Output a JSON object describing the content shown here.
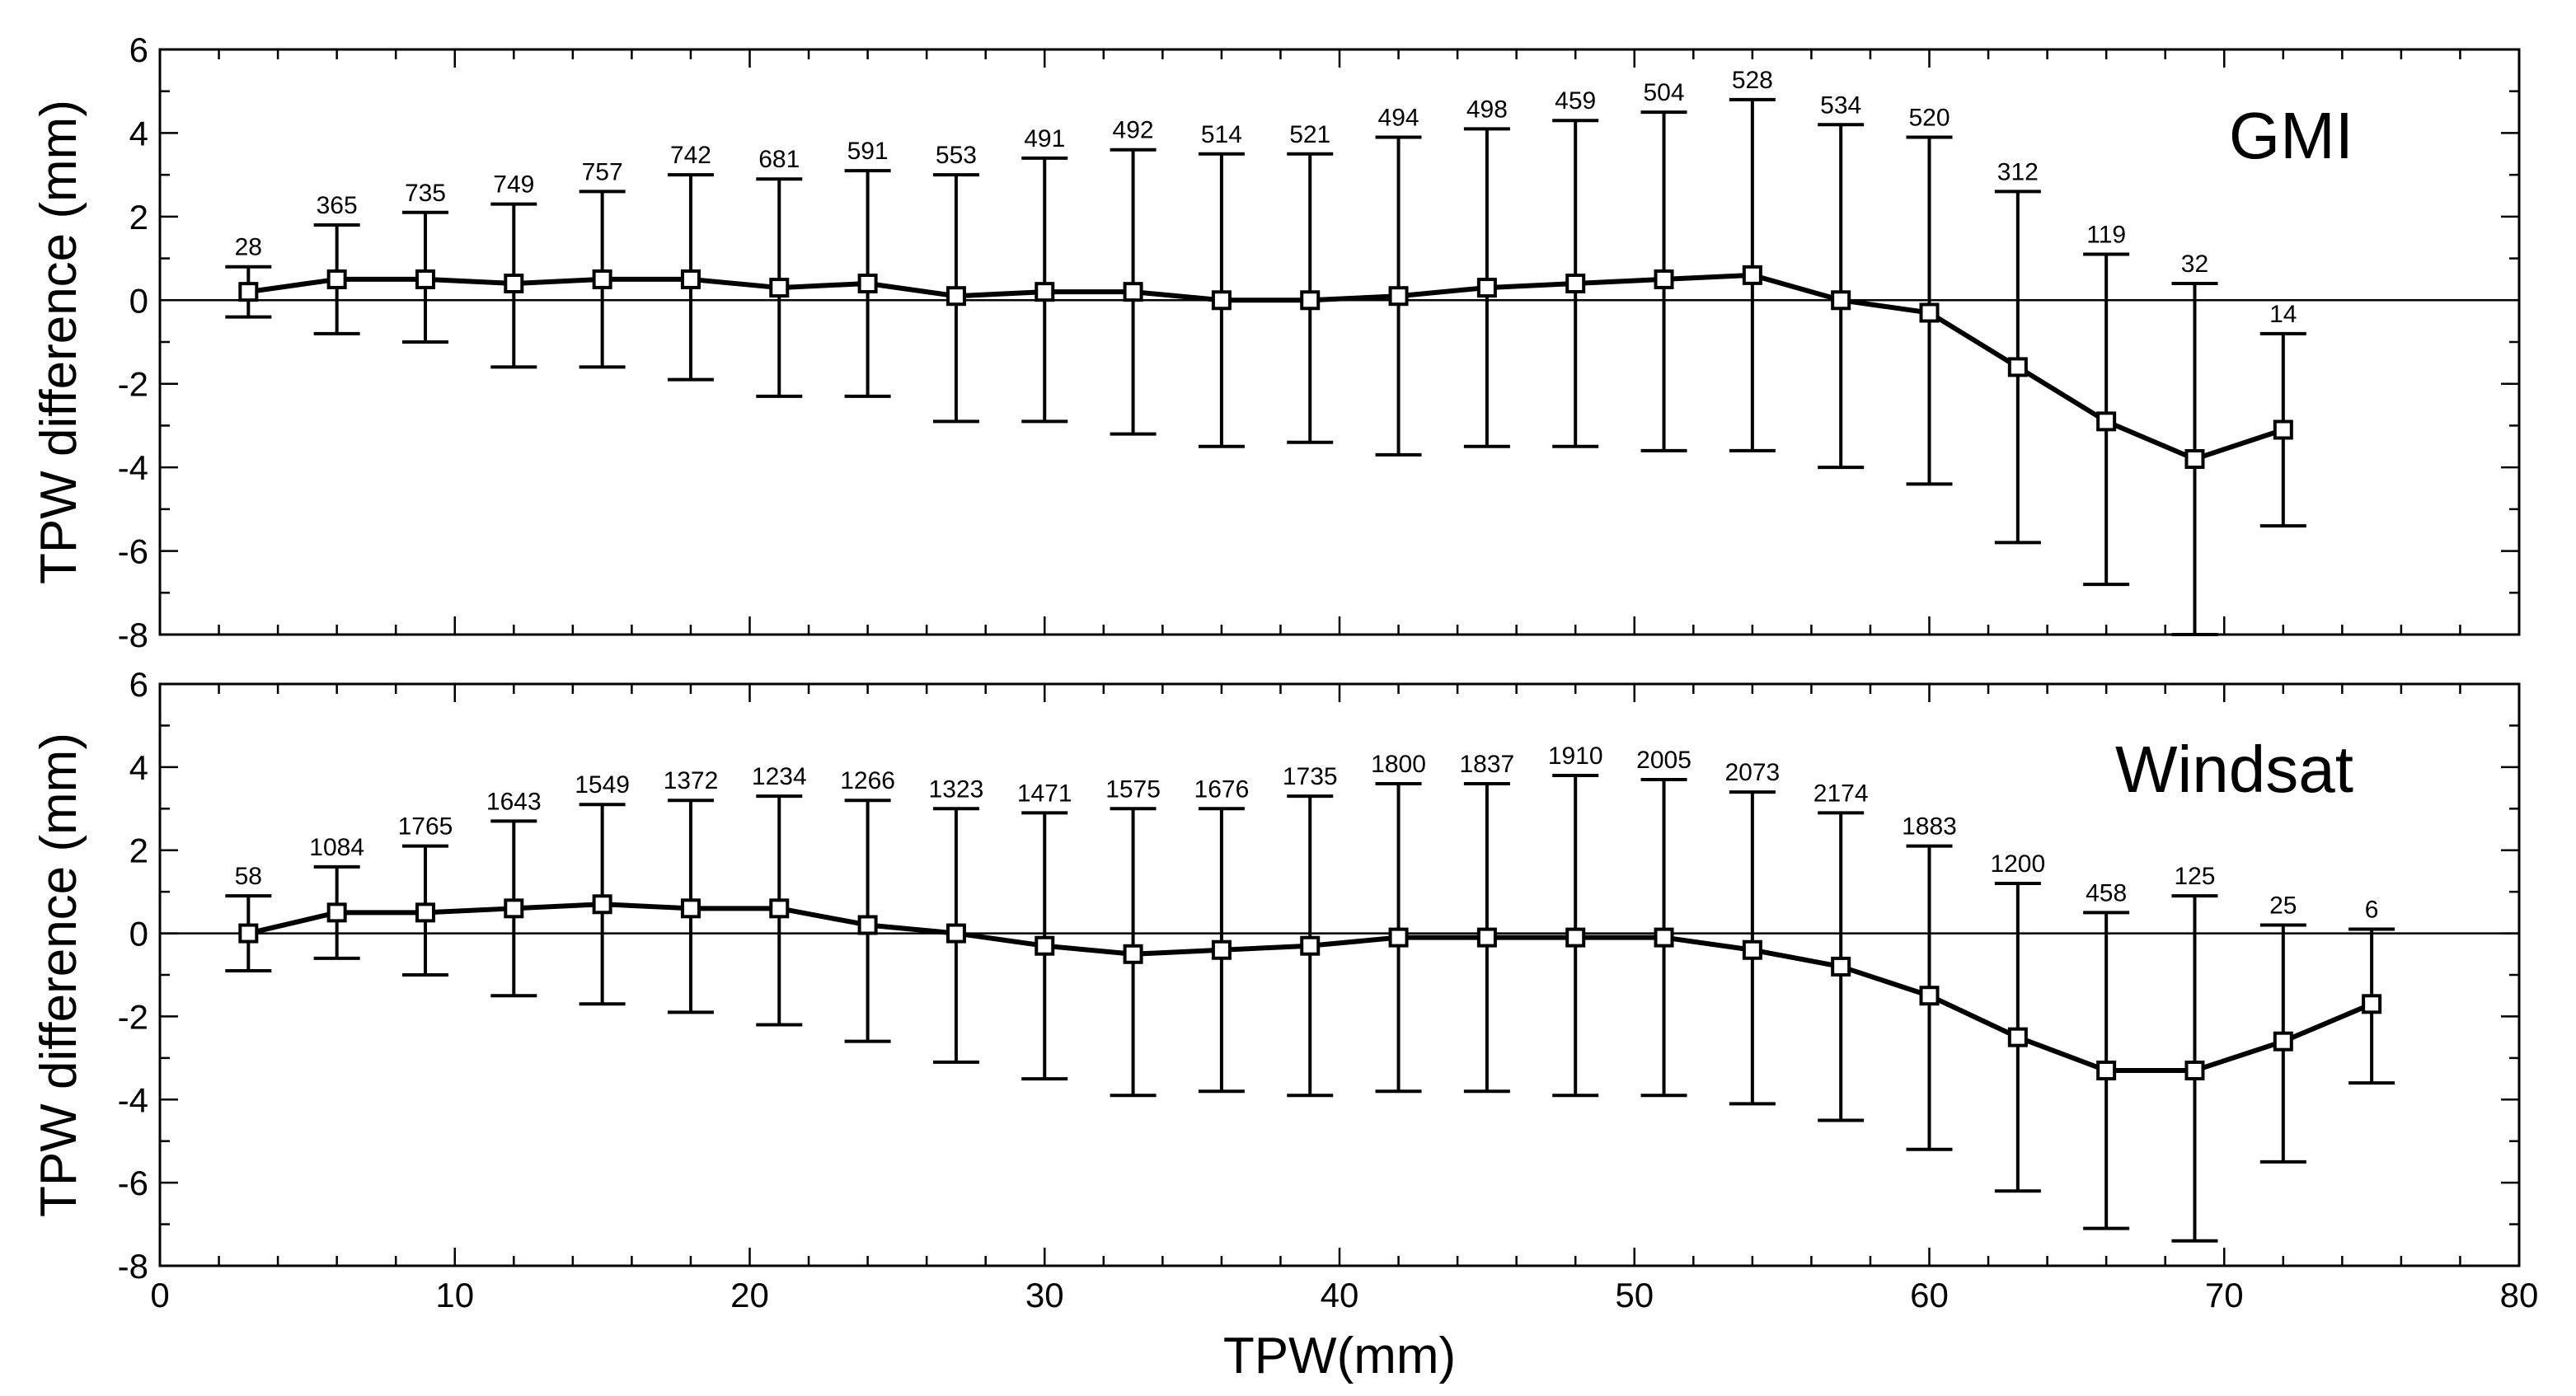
{
  "chart_data": [
    {
      "type": "line",
      "panel_label": "GMI",
      "title": "",
      "xlabel": "",
      "ylabel": "TPW difference (mm)",
      "xlim": [
        0,
        80
      ],
      "ylim": [
        -8,
        6
      ],
      "xticks": [
        0,
        10,
        20,
        30,
        40,
        50,
        60,
        70,
        80
      ],
      "yticks": [
        -8,
        -6,
        -4,
        -2,
        0,
        2,
        4,
        6
      ],
      "show_xtick_labels": false,
      "x": [
        3,
        6,
        9,
        12,
        15,
        18,
        21,
        24,
        27,
        30,
        33,
        36,
        39,
        42,
        45,
        48,
        51,
        54,
        57,
        60,
        63,
        66,
        69,
        72
      ],
      "mean": [
        0.2,
        0.5,
        0.5,
        0.4,
        0.5,
        0.5,
        0.3,
        0.4,
        0.1,
        0.2,
        0.2,
        0.0,
        0.0,
        0.1,
        0.3,
        0.4,
        0.5,
        0.6,
        0.0,
        -0.3,
        -1.6,
        -2.9,
        -3.8,
        -3.1
      ],
      "upper": [
        0.8,
        1.8,
        2.1,
        2.3,
        2.6,
        3.0,
        2.9,
        3.1,
        3.0,
        3.4,
        3.6,
        3.5,
        3.5,
        3.9,
        4.1,
        4.3,
        4.5,
        4.8,
        4.2,
        3.9,
        2.6,
        1.1,
        0.4,
        -0.8
      ],
      "lower": [
        -0.4,
        -0.8,
        -1.0,
        -1.6,
        -1.6,
        -1.9,
        -2.3,
        -2.3,
        -2.9,
        -2.9,
        -3.2,
        -3.5,
        -3.4,
        -3.7,
        -3.5,
        -3.5,
        -3.6,
        -3.6,
        -4.0,
        -4.4,
        -5.8,
        -6.8,
        -8.0,
        -5.4
      ],
      "counts": [
        "28",
        "365",
        "735",
        "749",
        "757",
        "742",
        "681",
        "591",
        "553",
        "491",
        "492",
        "514",
        "521",
        "494",
        "498",
        "459",
        "504",
        "528",
        "534",
        "520",
        "312",
        "119",
        "32",
        "14"
      ]
    },
    {
      "type": "line",
      "panel_label": "Windsat",
      "title": "",
      "xlabel": "TPW(mm)",
      "ylabel": "TPW difference (mm)",
      "xlim": [
        0,
        80
      ],
      "ylim": [
        -8,
        6
      ],
      "xticks": [
        0,
        10,
        20,
        30,
        40,
        50,
        60,
        70,
        80
      ],
      "yticks": [
        -8,
        -6,
        -4,
        -2,
        0,
        2,
        4,
        6
      ],
      "show_xtick_labels": true,
      "x": [
        3,
        6,
        9,
        12,
        15,
        18,
        21,
        24,
        27,
        30,
        33,
        36,
        39,
        42,
        45,
        48,
        51,
        54,
        57,
        60,
        63,
        66,
        69,
        72,
        75
      ],
      "mean": [
        0.0,
        0.5,
        0.5,
        0.6,
        0.7,
        0.6,
        0.6,
        0.2,
        0.0,
        -0.3,
        -0.5,
        -0.4,
        -0.3,
        -0.1,
        -0.1,
        -0.1,
        -0.1,
        -0.4,
        -0.8,
        -1.5,
        -2.5,
        -3.3,
        -3.3,
        -2.6,
        -1.7
      ],
      "upper": [
        0.9,
        1.6,
        2.1,
        2.7,
        3.1,
        3.2,
        3.3,
        3.2,
        3.0,
        2.9,
        3.0,
        3.0,
        3.3,
        3.6,
        3.6,
        3.8,
        3.7,
        3.4,
        2.9,
        2.1,
        1.2,
        0.5,
        0.9,
        0.2,
        0.1
      ],
      "lower": [
        -0.9,
        -0.6,
        -1.0,
        -1.5,
        -1.7,
        -1.9,
        -2.2,
        -2.6,
        -3.1,
        -3.5,
        -3.9,
        -3.8,
        -3.9,
        -3.8,
        -3.8,
        -3.9,
        -3.9,
        -4.1,
        -4.5,
        -5.2,
        -6.2,
        -7.1,
        -7.4,
        -5.5,
        -3.6
      ],
      "counts": [
        "58",
        "1084",
        "1765",
        "1643",
        "1549",
        "1372",
        "1234",
        "1266",
        "1323",
        "1471",
        "1575",
        "1676",
        "1735",
        "1800",
        "1837",
        "1910",
        "2005",
        "2073",
        "2174",
        "1883",
        "1200",
        "458",
        "125",
        "25",
        "6"
      ]
    }
  ]
}
